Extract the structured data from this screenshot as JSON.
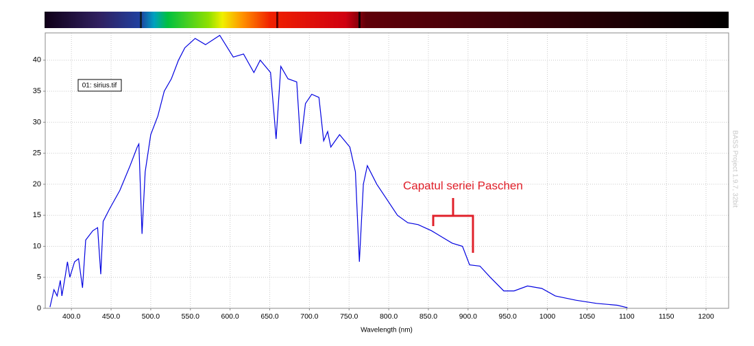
{
  "chart_data": {
    "type": "line",
    "xlabel": "Wavelength (nm)",
    "annotation": "Capatul seriei Paschen",
    "watermark": "BASS Project 1.9.7, 32bit",
    "xlim": [
      367,
      1228.5
    ],
    "ylim": [
      0,
      44.4
    ],
    "xticks": [
      {
        "value": 400,
        "label": "400.0"
      },
      {
        "value": 450,
        "label": "450.0"
      },
      {
        "value": 500,
        "label": "500.0"
      },
      {
        "value": 550,
        "label": "550.0"
      },
      {
        "value": 600,
        "label": "600.0"
      },
      {
        "value": 650,
        "label": "650.0"
      },
      {
        "value": 700,
        "label": "700.0"
      },
      {
        "value": 750,
        "label": "750.0"
      },
      {
        "value": 800,
        "label": "800.0"
      },
      {
        "value": 850,
        "label": "850.0"
      },
      {
        "value": 900,
        "label": "900.0"
      },
      {
        "value": 950,
        "label": "950.0"
      },
      1000,
      1050,
      1100,
      1150,
      1200
    ],
    "yticks": [
      0,
      5,
      10,
      15,
      20,
      25,
      30,
      35,
      40
    ],
    "grid": true,
    "series": [
      {
        "name": "01: sirius.tif",
        "color": "#0000e0",
        "x": [
          373,
          378,
          382,
          386,
          388,
          392,
          395,
          398,
          404,
          409,
          414,
          418,
          427,
          433,
          437,
          440,
          448,
          461,
          474,
          483,
          485,
          489,
          493,
          500,
          509,
          517,
          526,
          535,
          543,
          556,
          569,
          587,
          604,
          617,
          630,
          638,
          651,
          658,
          664,
          673,
          684,
          689,
          695,
          703,
          712,
          718,
          723,
          727,
          738,
          751,
          758,
          763,
          768,
          773,
          785,
          798,
          811,
          824,
          837,
          854,
          867,
          880,
          893,
          902,
          915,
          928,
          945,
          958,
          975,
          993,
          1010,
          1036,
          1062,
          1088,
          1101
        ],
        "values": [
          0.2,
          3,
          2,
          4.5,
          2,
          5,
          7.5,
          5,
          7.5,
          8,
          3.3,
          11,
          12.5,
          13,
          5.5,
          14,
          16,
          19,
          23,
          26,
          26.5,
          12,
          22,
          28,
          31,
          35,
          37,
          40,
          42,
          43.5,
          42.5,
          44,
          40.5,
          41,
          38,
          40,
          38,
          27.3,
          39,
          37,
          36.5,
          26.5,
          33,
          34.5,
          34,
          27,
          28.5,
          26,
          28,
          26,
          22,
          7.5,
          20,
          23,
          20,
          17.5,
          15,
          13.8,
          13.5,
          12.5,
          11.5,
          10.5,
          10,
          7,
          6.8,
          5,
          2.8,
          2.8,
          3.6,
          3.2,
          2,
          1.3,
          0.8,
          0.5,
          0.1
        ]
      }
    ]
  }
}
